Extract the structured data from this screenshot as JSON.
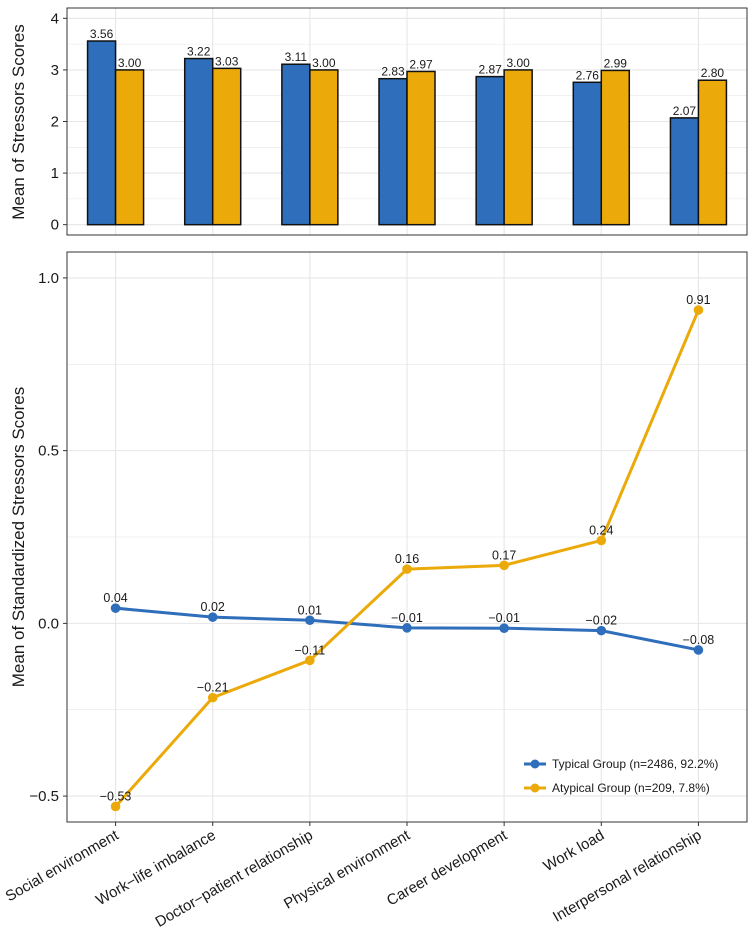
{
  "colors": {
    "typical": "#2E6EBB",
    "atypical": "#EBAA0A",
    "grid": "#E6E6E6",
    "panel_border": "#333333",
    "text": "#1a1a1a"
  },
  "chart_data": [
    {
      "type": "bar",
      "ylabel": "Mean of Stressors Scores",
      "ylim": [
        -0.2,
        4.2
      ],
      "yticks": [
        "0",
        "1",
        "2",
        "3",
        "4"
      ],
      "categories": [
        "Social environment",
        "Work−life imbalance",
        "Doctor−patient relationship",
        "Physical environment",
        "Career development",
        "Work load",
        "Interpersonal relationship"
      ],
      "series": [
        {
          "name": "Typical Group",
          "values": [
            3.56,
            3.22,
            3.11,
            2.83,
            2.87,
            2.76,
            2.07
          ],
          "labels": [
            "3.56",
            "3.22",
            "3.11",
            "2.83",
            "2.87",
            "2.76",
            "2.07"
          ]
        },
        {
          "name": "Atypical Group",
          "values": [
            3.0,
            3.03,
            3.0,
            2.97,
            3.0,
            2.99,
            2.8
          ],
          "labels": [
            "3.00",
            "3.03",
            "3.00",
            "2.97",
            "3.00",
            "2.99",
            "2.80"
          ]
        }
      ]
    },
    {
      "type": "line",
      "ylabel": "Mean of Standardized Stressors Scores",
      "ylim": [
        -0.575,
        1.075
      ],
      "yticks": [
        "−0.5",
        "0.0",
        "0.5",
        "1.0"
      ],
      "categories": [
        "Social environment",
        "Work−life imbalance",
        "Doctor−patient relationship",
        "Physical environment",
        "Career development",
        "Work load",
        "Interpersonal relationship"
      ],
      "series": [
        {
          "name": "Typical Group (n=2486, 92.2%)",
          "values": [
            0.044,
            0.018,
            0.009,
            -0.013,
            -0.014,
            -0.021,
            -0.077
          ],
          "labels": [
            "0.04",
            "0.02",
            "0.01",
            "−0.01",
            "−0.01",
            "−0.02",
            "−0.08"
          ]
        },
        {
          "name": "Atypical Group (n=209, 7.8%)",
          "values": [
            -0.53,
            -0.215,
            -0.107,
            0.157,
            0.168,
            0.24,
            0.907
          ],
          "labels": [
            "−0.53",
            "−0.21",
            "−0.11",
            "0.16",
            "0.17",
            "0.24",
            "0.91"
          ]
        }
      ],
      "legend_position": "bottom-right"
    }
  ]
}
